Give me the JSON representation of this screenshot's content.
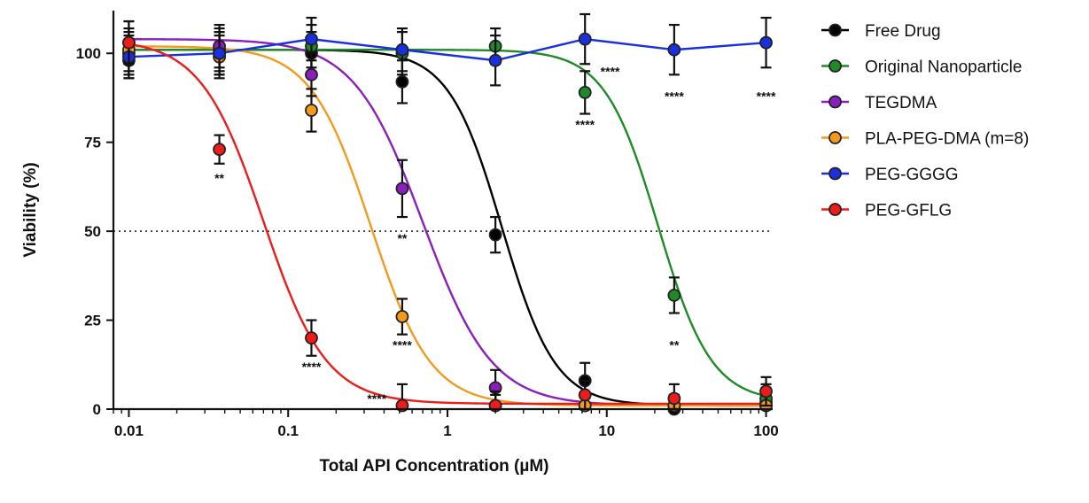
{
  "chart_data": {
    "type": "scatter",
    "xlabel": "Total API Concentration (µM)",
    "ylabel": "Viability (%)",
    "x_scale": "log",
    "xlim": [
      0.008,
      110
    ],
    "ylim": [
      0,
      112
    ],
    "x_ticks": [
      0.01,
      0.1,
      1,
      10,
      100
    ],
    "x_tick_labels": [
      "0.01",
      "0.1",
      "1",
      "10",
      "100"
    ],
    "y_ticks": [
      0,
      25,
      50,
      75,
      100
    ],
    "y_tick_labels": [
      "0",
      "25",
      "50",
      "75",
      "100"
    ],
    "reference_line": {
      "y": 50,
      "style": "dotted"
    },
    "legend_position": "right",
    "grid": false,
    "series": [
      {
        "name": "Free Drug",
        "color": "#000000",
        "x": [
          0.01,
          0.037,
          0.14,
          0.52,
          2.0,
          7.3,
          26.5,
          100
        ],
        "y": [
          98,
          101,
          100,
          92,
          49,
          8,
          0,
          2
        ],
        "err": [
          5,
          6,
          6,
          6,
          5,
          5,
          4,
          4
        ],
        "fit": {
          "top": 101,
          "bottom": 1,
          "ec50": 2.2,
          "hill": 2.6
        }
      },
      {
        "name": "Original Nanoparticle",
        "color": "#1e8a28",
        "x": [
          0.01,
          0.037,
          0.14,
          0.52,
          2.0,
          7.3,
          26.5,
          100
        ],
        "y": [
          100,
          100,
          102,
          100,
          102,
          89,
          32,
          3
        ],
        "err": [
          6,
          6,
          6,
          6,
          5,
          6,
          5,
          4
        ],
        "fit": {
          "top": 101,
          "bottom": 2,
          "ec50": 21,
          "hill": 2.6
        }
      },
      {
        "name": "TEGDMA",
        "color": "#8a1fbd",
        "x": [
          0.01,
          0.037,
          0.14,
          0.52,
          2.0,
          7.3,
          26.5,
          100
        ],
        "y": [
          103,
          102,
          94,
          62,
          6,
          1,
          1,
          1
        ],
        "err": [
          6,
          6,
          6,
          8,
          5,
          3,
          3,
          3
        ],
        "fit": {
          "top": 104,
          "bottom": 1,
          "ec50": 0.7,
          "hill": 2.0
        }
      },
      {
        "name": "PLA-PEG-DMA (m=8)",
        "color": "#f39a1c",
        "x": [
          0.01,
          0.037,
          0.14,
          0.52,
          2.0,
          7.3,
          26.5,
          100
        ],
        "y": [
          101,
          99,
          84,
          26,
          1,
          1,
          1,
          1
        ],
        "err": [
          6,
          6,
          6,
          5,
          3,
          3,
          3,
          3
        ],
        "fit": {
          "top": 102,
          "bottom": 1,
          "ec50": 0.33,
          "hill": 2.3
        }
      },
      {
        "name": "PEG-GGGG",
        "color": "#1a2fe0",
        "x": [
          0.01,
          0.037,
          0.14,
          0.52,
          2.0,
          7.3,
          26.5,
          100
        ],
        "y": [
          99,
          100,
          104,
          101,
          98,
          104,
          101,
          103
        ],
        "err": [
          6,
          6,
          6,
          6,
          7,
          7,
          7,
          7
        ],
        "fit": null
      },
      {
        "name": "PEG-GFLG",
        "color": "#ee1b1b",
        "x": [
          0.01,
          0.037,
          0.14,
          0.52,
          2.0,
          7.3,
          26.5,
          100
        ],
        "y": [
          103,
          73,
          20,
          1,
          1,
          4,
          3,
          5
        ],
        "err": [
          6,
          4,
          5,
          6,
          4,
          4,
          4,
          4
        ],
        "fit": {
          "top": 104,
          "bottom": 1.5,
          "ec50": 0.07,
          "hill": 2.2
        }
      }
    ],
    "annotations": [
      {
        "text": "**",
        "x": 0.037,
        "y": 65
      },
      {
        "text": "****",
        "x": 0.14,
        "y": 12
      },
      {
        "text": "****",
        "x": 0.36,
        "y": 3
      },
      {
        "text": "****",
        "x": 0.52,
        "y": 18
      },
      {
        "text": "**",
        "x": 0.52,
        "y": 48
      },
      {
        "text": "****",
        "x": 7.3,
        "y": 80
      },
      {
        "text": "****",
        "x": 10.5,
        "y": 95
      },
      {
        "text": "****",
        "x": 26.5,
        "y": 88
      },
      {
        "text": "****",
        "x": 100,
        "y": 88
      },
      {
        "text": "**",
        "x": 26.5,
        "y": 18
      }
    ]
  }
}
